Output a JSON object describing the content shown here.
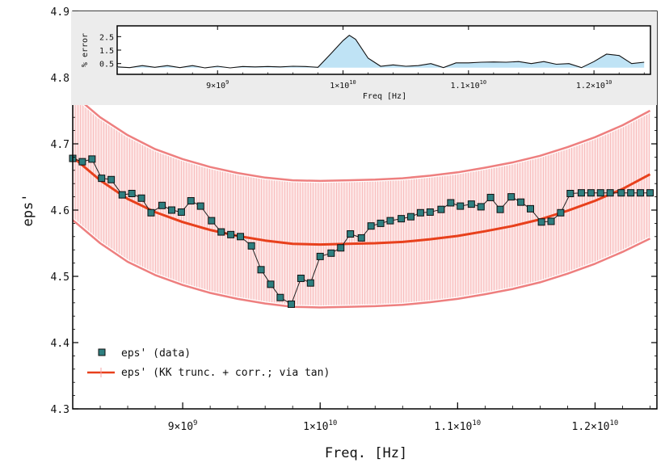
{
  "chart_data": [
    {
      "type": "line",
      "role": "main",
      "xlabel": "Freq. [Hz]",
      "ylabel": "eps'",
      "xlim": [
        8200000000.0,
        12450000000.0
      ],
      "ylim": [
        4.3,
        4.9
      ],
      "x_ticks": [
        {
          "value": 9000000000.0,
          "mantissa": "9",
          "exp": "9",
          "times_prefix": ""
        },
        {
          "value": 10000000000.0,
          "mantissa": "",
          "exp": "10",
          "times_prefix": "1"
        },
        {
          "value": 11000000000.0,
          "mantissa": "1.1",
          "exp": "10",
          "times_prefix": ""
        },
        {
          "value": 12000000000.0,
          "mantissa": "1.2",
          "exp": "10",
          "times_prefix": ""
        }
      ],
      "x_tick_labels": [
        "9×10^9",
        "1×10^10",
        "1.1×10^10",
        "1.2×10^10"
      ],
      "y_ticks": [
        4.3,
        4.4,
        4.5,
        4.6,
        4.7,
        4.8,
        4.9
      ],
      "y_tick_labels": [
        "4.3",
        "4.4",
        "4.5",
        "4.6",
        "4.7",
        "4.8",
        "4.9"
      ],
      "legend": {
        "position": "bottom-left",
        "entries": [
          "eps' (data)",
          "eps' (KK trunc. + corr.; via tan)"
        ]
      },
      "colors": {
        "data_marker": "#2e7f80",
        "data_line": "#222222",
        "fit_line": "#e8401c",
        "band_fill": "#fbd3d3",
        "band_edge": "#ee7f7f"
      },
      "series": [
        {
          "name": "eps' (data)",
          "style": "markers+line",
          "x": [
            8200000000.0,
            8270000000.0,
            8340000000.0,
            8410000000.0,
            8480000000.0,
            8560000000.0,
            8630000000.0,
            8700000000.0,
            8770000000.0,
            8850000000.0,
            8920000000.0,
            8990000000.0,
            9060000000.0,
            9130000000.0,
            9210000000.0,
            9280000000.0,
            9350000000.0,
            9420000000.0,
            9500000000.0,
            9570000000.0,
            9640000000.0,
            9710000000.0,
            9790000000.0,
            9860000000.0,
            9930000000.0,
            10000000000.0,
            10080000000.0,
            10150000000.0,
            10220000000.0,
            10300000000.0,
            10370000000.0,
            10440000000.0,
            10510000000.0,
            10590000000.0,
            10660000000.0,
            10730000000.0,
            10800000000.0,
            10880000000.0,
            10950000000.0,
            11020000000.0,
            11100000000.0,
            11170000000.0,
            11240000000.0,
            11310000000.0,
            11390000000.0,
            11460000000.0,
            11530000000.0,
            11610000000.0,
            11680000000.0,
            11750000000.0,
            11820000000.0,
            11900000000.0,
            11970000000.0,
            12040000000.0,
            12110000000.0,
            12190000000.0,
            12260000000.0,
            12330000000.0,
            12400000000.0
          ],
          "values": [
            4.678,
            4.673,
            4.677,
            4.648,
            4.646,
            4.623,
            4.625,
            4.618,
            4.596,
            4.607,
            4.6,
            4.597,
            4.614,
            4.606,
            4.584,
            4.567,
            4.563,
            4.56,
            4.546,
            4.51,
            4.488,
            4.468,
            4.458,
            4.497,
            4.49,
            4.53,
            4.535,
            4.543,
            4.564,
            4.558,
            4.576,
            4.58,
            4.584,
            4.587,
            4.59,
            4.596,
            4.597,
            4.601,
            4.611,
            4.606,
            4.609,
            4.605,
            4.619,
            4.601,
            4.62,
            4.612,
            4.602,
            4.582,
            4.583,
            4.596,
            4.625,
            4.626,
            4.626,
            4.626,
            4.626,
            4.626,
            4.626,
            4.626,
            4.626
          ]
        },
        {
          "name": "eps' (KK trunc. + corr.; via tan)",
          "style": "line",
          "x": [
            8200000000.0,
            8400000000.0,
            8600000000.0,
            8800000000.0,
            9000000000.0,
            9200000000.0,
            9400000000.0,
            9600000000.0,
            9800000000.0,
            10000000000.0,
            10200000000.0,
            10400000000.0,
            10600000000.0,
            10800000000.0,
            11000000000.0,
            11200000000.0,
            11400000000.0,
            11600000000.0,
            11800000000.0,
            12000000000.0,
            12200000000.0,
            12400000000.0
          ],
          "values": [
            4.68,
            4.645,
            4.617,
            4.597,
            4.582,
            4.57,
            4.561,
            4.554,
            4.549,
            4.548,
            4.549,
            4.55,
            4.552,
            4.556,
            4.561,
            4.568,
            4.576,
            4.586,
            4.599,
            4.614,
            4.632,
            4.654
          ]
        },
        {
          "name": "band upper",
          "style": "band-edge",
          "x": [
            8200000000.0,
            8400000000.0,
            8600000000.0,
            8800000000.0,
            9000000000.0,
            9200000000.0,
            9400000000.0,
            9600000000.0,
            9800000000.0,
            10000000000.0,
            10200000000.0,
            10400000000.0,
            10600000000.0,
            10800000000.0,
            11000000000.0,
            11200000000.0,
            11400000000.0,
            11600000000.0,
            11800000000.0,
            12000000000.0,
            12200000000.0,
            12400000000.0
          ],
          "values": [
            4.775,
            4.74,
            4.713,
            4.692,
            4.677,
            4.665,
            4.656,
            4.649,
            4.645,
            4.644,
            4.645,
            4.646,
            4.648,
            4.652,
            4.657,
            4.664,
            4.672,
            4.682,
            4.695,
            4.71,
            4.728,
            4.75
          ]
        },
        {
          "name": "band lower",
          "style": "band-edge",
          "x": [
            8200000000.0,
            8400000000.0,
            8600000000.0,
            8800000000.0,
            9000000000.0,
            9200000000.0,
            9400000000.0,
            9600000000.0,
            9800000000.0,
            10000000000.0,
            10200000000.0,
            10400000000.0,
            10600000000.0,
            10800000000.0,
            11000000000.0,
            11200000000.0,
            11400000000.0,
            11600000000.0,
            11800000000.0,
            12000000000.0,
            12200000000.0,
            12400000000.0
          ],
          "values": [
            4.585,
            4.55,
            4.522,
            4.502,
            4.487,
            4.475,
            4.466,
            4.459,
            4.454,
            4.453,
            4.454,
            4.455,
            4.457,
            4.461,
            4.466,
            4.473,
            4.481,
            4.491,
            4.504,
            4.519,
            4.537,
            4.557
          ]
        }
      ]
    },
    {
      "type": "area",
      "role": "inset",
      "xlabel": "Freq [Hz]",
      "ylabel": "% error",
      "xlim": [
        8200000000.0,
        12450000000.0
      ],
      "ylim": [
        -0.3,
        3.3
      ],
      "x_ticks": [
        9000000000.0,
        10000000000.0,
        11000000000.0,
        12000000000.0
      ],
      "x_tick_labels": [
        "9×10^9",
        "1×10^10",
        "1.1×10^10",
        "1.2×10^10"
      ],
      "y_ticks": [
        0.5,
        1.5,
        2.5
      ],
      "y_tick_labels": [
        "0.5",
        "1.5",
        "2.5"
      ],
      "grid": false,
      "colors": {
        "fill": "#bfe3f5",
        "line": "#111111",
        "panel_bg": "#ececec"
      },
      "series": [
        {
          "name": "% error",
          "x": [
            8200000000.0,
            8300000000.0,
            8400000000.0,
            8500000000.0,
            8600000000.0,
            8700000000.0,
            8800000000.0,
            8900000000.0,
            9000000000.0,
            9100000000.0,
            9200000000.0,
            9300000000.0,
            9400000000.0,
            9500000000.0,
            9600000000.0,
            9700000000.0,
            9800000000.0,
            9900000000.0,
            10000000000.0,
            10050000000.0,
            10100000000.0,
            10200000000.0,
            10300000000.0,
            10400000000.0,
            10500000000.0,
            10600000000.0,
            10700000000.0,
            10800000000.0,
            10900000000.0,
            11000000000.0,
            11100000000.0,
            11200000000.0,
            11300000000.0,
            11400000000.0,
            11500000000.0,
            11600000000.0,
            11700000000.0,
            11800000000.0,
            11900000000.0,
            12000000000.0,
            12100000000.0,
            12200000000.0,
            12300000000.0,
            12400000000.0
          ],
          "values": [
            0.25,
            0.2,
            0.35,
            0.22,
            0.35,
            0.2,
            0.35,
            0.18,
            0.3,
            0.18,
            0.28,
            0.25,
            0.28,
            0.25,
            0.3,
            0.28,
            0.22,
            1.2,
            2.2,
            2.6,
            2.3,
            0.9,
            0.3,
            0.4,
            0.3,
            0.35,
            0.5,
            0.2,
            0.55,
            0.55,
            0.6,
            0.62,
            0.6,
            0.65,
            0.5,
            0.65,
            0.45,
            0.5,
            0.2,
            0.65,
            1.2,
            1.1,
            0.5,
            0.6
          ]
        }
      ]
    }
  ]
}
